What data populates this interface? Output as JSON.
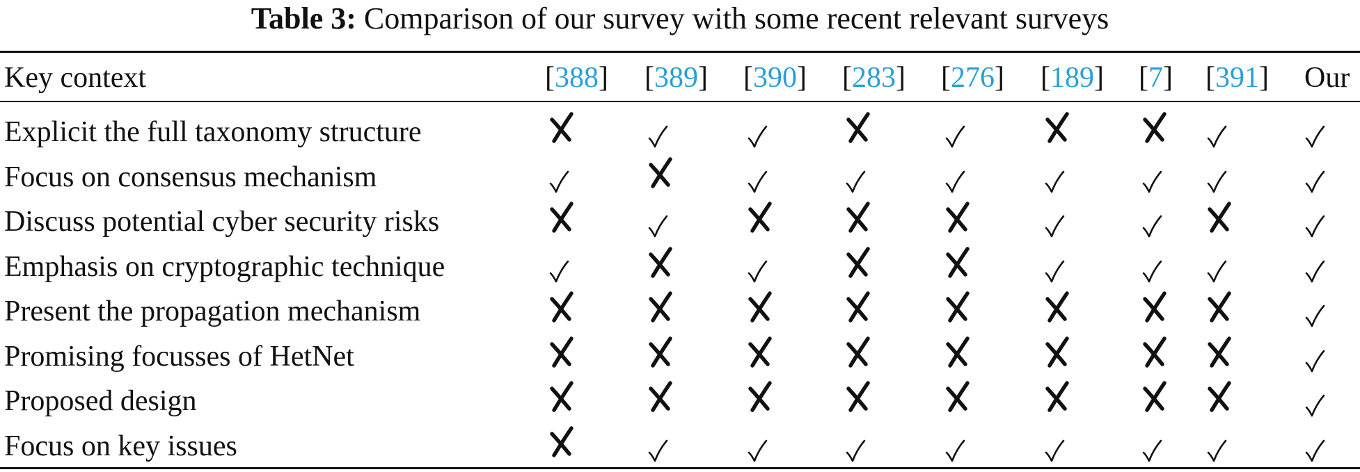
{
  "caption": {
    "label": "Table 3:",
    "text": "Comparison of our survey with some recent relevant surveys"
  },
  "table": {
    "key_header": "Key context",
    "columns": [
      {
        "open": "[",
        "ref": "388",
        "close": "]"
      },
      {
        "open": "[",
        "ref": "389",
        "close": "]"
      },
      {
        "open": "[",
        "ref": "390",
        "close": "]"
      },
      {
        "open": "[",
        "ref": "283",
        "close": "]"
      },
      {
        "open": "[",
        "ref": "276",
        "close": "]"
      },
      {
        "open": "[",
        "ref": "189",
        "close": "]"
      },
      {
        "open": "[",
        "ref": "7",
        "close": "]"
      },
      {
        "open": "[",
        "ref": "391",
        "close": "]"
      },
      {
        "open": "",
        "ref": "",
        "close": "",
        "plain": "Our"
      }
    ],
    "rows": [
      {
        "label": "Explicit the full taxonomy structure",
        "marks": [
          "cross",
          "check",
          "check",
          "cross",
          "check",
          "cross",
          "cross",
          "check",
          "check"
        ]
      },
      {
        "label": "Focus on consensus mechanism",
        "marks": [
          "check",
          "cross",
          "check",
          "check",
          "check",
          "check",
          "check",
          "check",
          "check"
        ]
      },
      {
        "label": "Discuss potential cyber security risks",
        "marks": [
          "cross",
          "check",
          "cross",
          "cross",
          "cross",
          "check",
          "check",
          "cross",
          "check"
        ]
      },
      {
        "label": "Emphasis on cryptographic technique",
        "marks": [
          "check",
          "cross",
          "check",
          "cross",
          "cross",
          "check",
          "check",
          "check",
          "check"
        ]
      },
      {
        "label": "Present the propagation mechanism",
        "marks": [
          "cross",
          "cross",
          "cross",
          "cross",
          "cross",
          "cross",
          "cross",
          "cross",
          "check"
        ]
      },
      {
        "label": "Promising focusses of HetNet",
        "marks": [
          "cross",
          "cross",
          "cross",
          "cross",
          "cross",
          "cross",
          "cross",
          "cross",
          "check"
        ]
      },
      {
        "label": "Proposed design",
        "marks": [
          "cross",
          "cross",
          "cross",
          "cross",
          "cross",
          "cross",
          "cross",
          "cross",
          "check"
        ]
      },
      {
        "label": "Focus on key issues",
        "marks": [
          "cross",
          "check",
          "check",
          "check",
          "check",
          "check",
          "check",
          "check",
          "check"
        ]
      }
    ]
  },
  "colors": {
    "citation_link": "#2a9fd6",
    "text": "#111111"
  },
  "icons": {
    "check": "check-mark-icon",
    "cross": "cross-mark-icon"
  }
}
